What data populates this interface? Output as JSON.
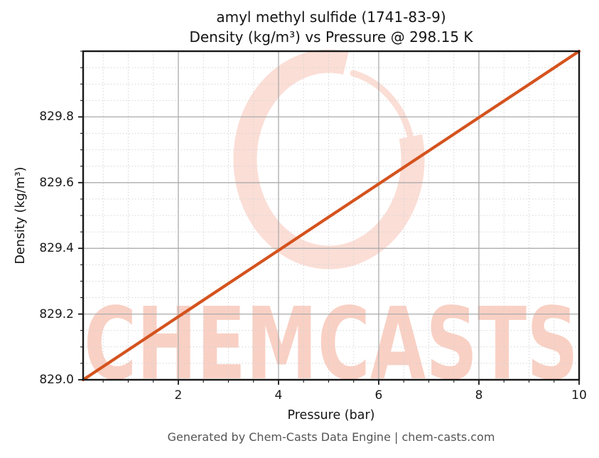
{
  "figure": {
    "title_line1": "amyl methyl sulfide (1741-83-9)",
    "title_line2": "Density (kg/m³) vs Pressure @ 298.15 K",
    "footer": "Generated by Chem-Casts Data Engine | chem-casts.com"
  },
  "watermark": {
    "text": "CHEMCASTS",
    "ring_color": "#fbded6",
    "text_color": "#f9d0c4"
  },
  "chart_data": {
    "type": "line",
    "title": "amyl methyl sulfide (1741-83-9) — Density (kg/m³) vs Pressure @ 298.15 K",
    "xlabel": "Pressure (bar)",
    "ylabel": "Density (kg/m³)",
    "xlim": [
      0.1,
      10
    ],
    "ylim": [
      829.0,
      830.0
    ],
    "x_major_ticks": [
      2,
      4,
      6,
      8,
      10
    ],
    "x_tick_labels": [
      "2",
      "4",
      "6",
      "8",
      "10"
    ],
    "y_major_ticks": [
      829.0,
      829.2,
      829.4,
      829.6,
      829.8
    ],
    "y_tick_labels": [
      "829.0",
      "829.2",
      "829.4",
      "829.6",
      "829.8"
    ],
    "x_minor_step": 0.5,
    "y_minor_step": 0.05,
    "grid": "major-solid, minor-dotted",
    "legend_position": "none",
    "series": [
      {
        "name": "Density vs Pressure @ 298.15 K",
        "color": "#d4531e",
        "x": [
          0.1,
          1,
          2,
          3,
          4,
          5,
          6,
          7,
          8,
          9,
          10
        ],
        "y": [
          829.0,
          829.091,
          829.192,
          829.293,
          829.394,
          829.495,
          829.596,
          829.697,
          829.798,
          829.899,
          830.0
        ]
      }
    ]
  }
}
